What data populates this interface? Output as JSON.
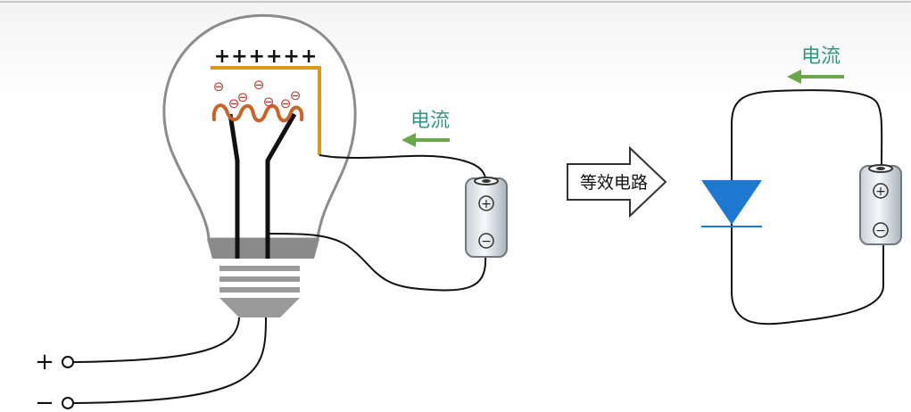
{
  "diagram": {
    "plate_charge_label": "++++++",
    "electron_symbol": "⊖",
    "current_label_left": "电流",
    "current_label_right": "电流",
    "equivalent_label": "等效电路",
    "battery_positive": "+",
    "battery_negative": "−",
    "terminal_positive": "+",
    "terminal_negative": "−"
  },
  "colors": {
    "current_arrow": "#6aa74a",
    "current_text": "#2e9a86",
    "plate": "#d89a1c",
    "filament": "#c8642a",
    "electron": "#c0392b",
    "diode": "#1e78d2",
    "bulb_outline": "#8c8c8c",
    "base_gray": "#8a8a8a"
  }
}
